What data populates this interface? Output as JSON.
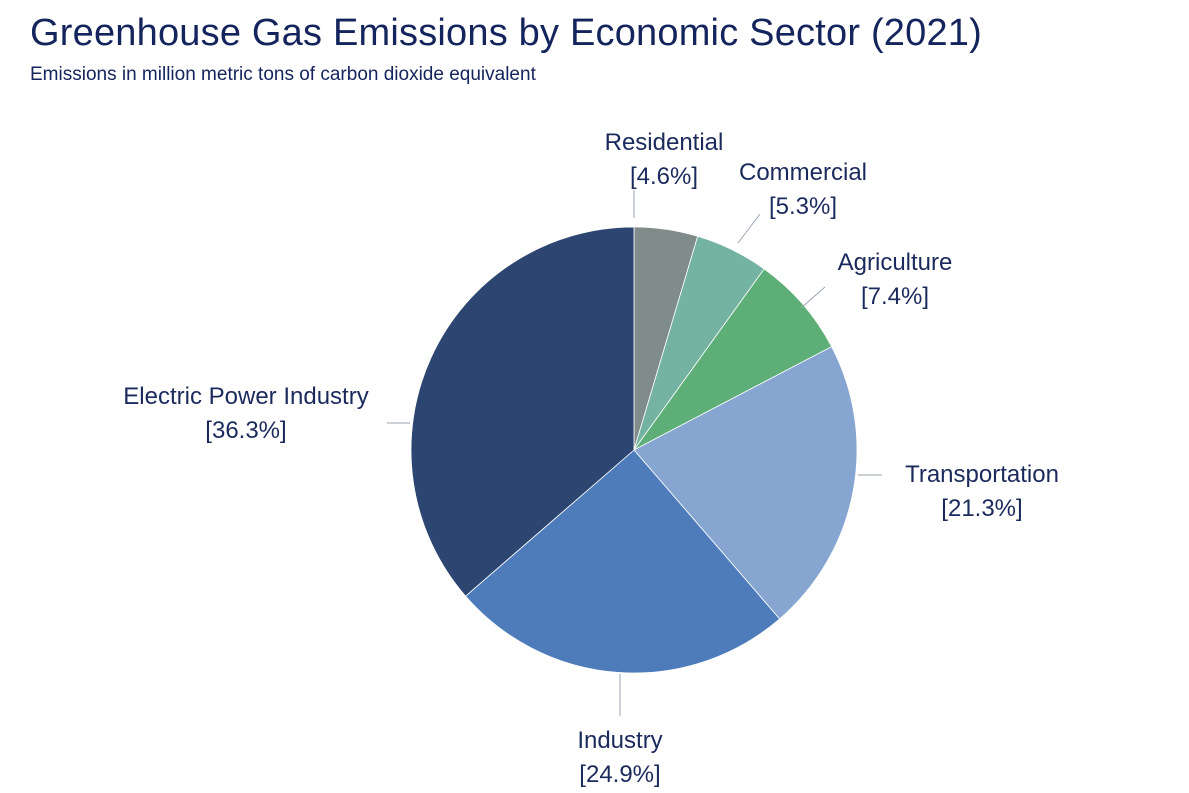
{
  "title": "Greenhouse Gas Emissions by Economic Sector (2021)",
  "subtitle": "Emissions in million metric tons of carbon dioxide equivalent",
  "chart_data": {
    "type": "pie",
    "title": "Greenhouse Gas Emissions by Economic Sector (2021)",
    "subtitle": "Emissions in million metric tons of carbon dioxide equivalent",
    "start_angle_deg": 0,
    "direction": "clockwise",
    "legend": "none",
    "slices": [
      {
        "name": "Residential",
        "value": 4.6,
        "label": "[4.6%]",
        "color": "#7f8c8a"
      },
      {
        "name": "Commercial",
        "value": 5.3,
        "label": "[5.3%]",
        "color": "#74b3a2"
      },
      {
        "name": "Agriculture",
        "value": 7.4,
        "label": "[7.4%]",
        "color": "#5eae77"
      },
      {
        "name": "Transportation",
        "value": 21.3,
        "label": "[21.3%]",
        "color": "#87a5d1"
      },
      {
        "name": "Industry",
        "value": 24.9,
        "label": "[24.9%]",
        "color": "#4e7cbb"
      },
      {
        "name": "Electric Power Industry",
        "value": 36.3,
        "label": "[36.3%]",
        "color": "#2c4571"
      }
    ]
  }
}
